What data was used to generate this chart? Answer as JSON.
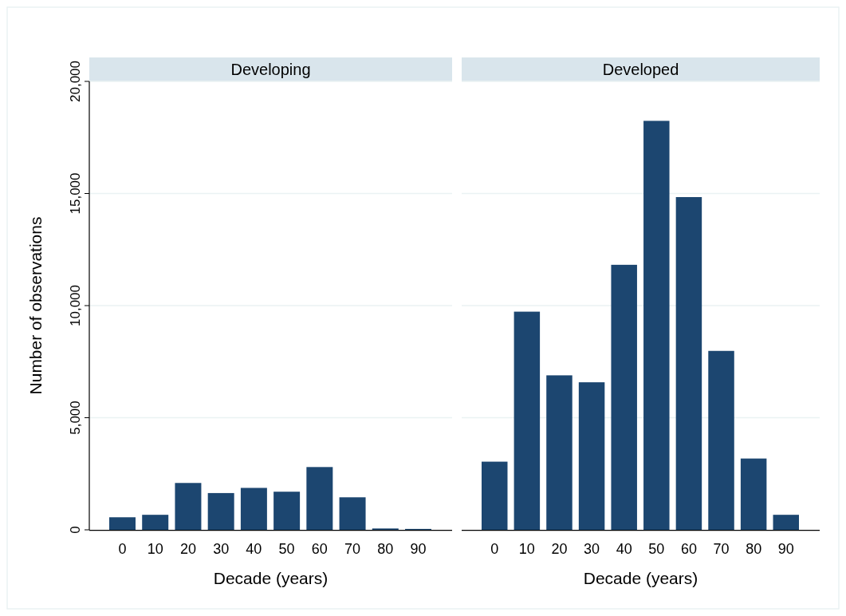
{
  "chart_data": [
    {
      "type": "bar",
      "title": "Developing",
      "xlabel": "Decade (years)",
      "ylabel": "Number of observations",
      "categories": [
        "0",
        "10",
        "20",
        "30",
        "40",
        "50",
        "60",
        "70",
        "80",
        "90"
      ],
      "values": [
        560,
        670,
        2090,
        1640,
        1870,
        1700,
        2800,
        1450,
        60,
        40
      ],
      "color": "#1c4670",
      "ylim": [
        0,
        20000
      ],
      "yticks": [
        {
          "value": 0,
          "label": "0"
        },
        {
          "value": 5000,
          "label": "5,000"
        },
        {
          "value": 10000,
          "label": "10,000"
        },
        {
          "value": 15000,
          "label": "15,000"
        },
        {
          "value": 20000,
          "label": "20,000"
        }
      ],
      "grid": "y"
    },
    {
      "type": "bar",
      "title": "Developed",
      "xlabel": "Decade (years)",
      "categories": [
        "0",
        "10",
        "20",
        "30",
        "40",
        "50",
        "60",
        "70",
        "80",
        "90"
      ],
      "values": [
        3040,
        9730,
        6890,
        6580,
        11820,
        18240,
        14840,
        7980,
        3180,
        670
      ],
      "color": "#1c4670",
      "ylim": [
        0,
        20000
      ],
      "yticks": [
        {
          "value": 0,
          "label": null
        },
        {
          "value": 5000,
          "label": null
        },
        {
          "value": 10000,
          "label": null
        },
        {
          "value": 15000,
          "label": null
        },
        {
          "value": 20000,
          "label": null
        }
      ],
      "grid": "y",
      "tick_labels": "x"
    }
  ]
}
